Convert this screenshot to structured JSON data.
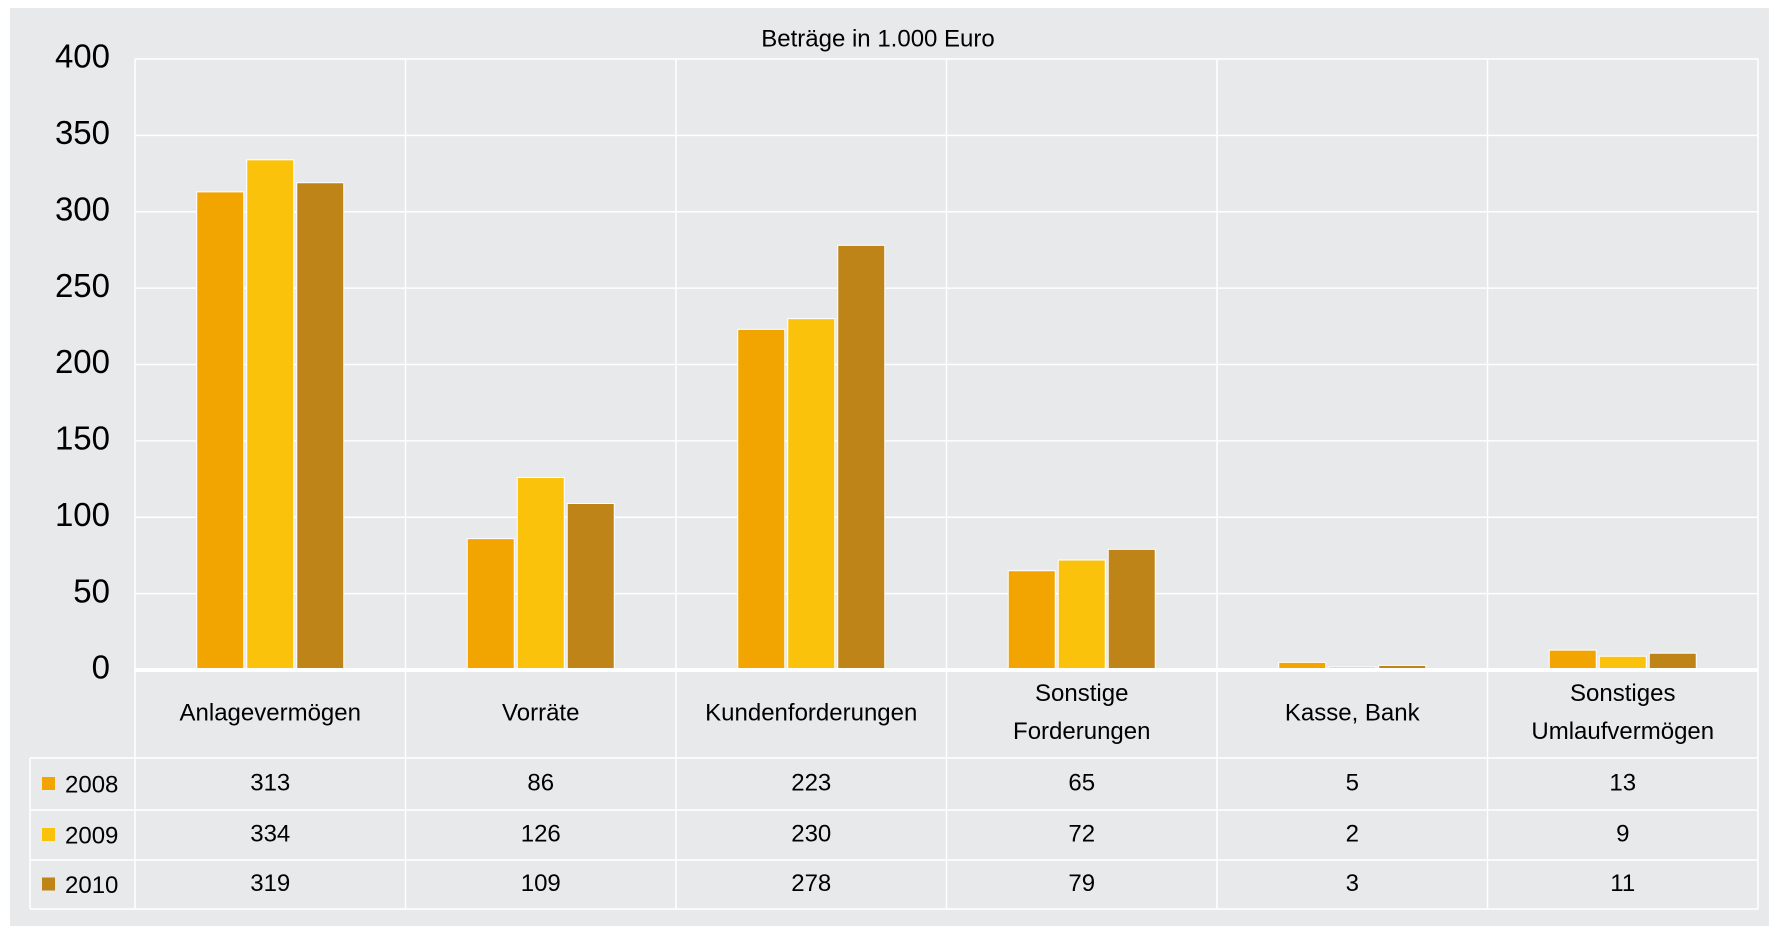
{
  "chart_data": {
    "type": "bar",
    "title": "Beträge in 1.000 Euro",
    "categories": [
      "Anlagevermögen",
      "Vorräte",
      "Kundenforderungen",
      "Sonstige Forderungen",
      "Kasse, Bank",
      "Sonstiges Umlaufvermögen"
    ],
    "series": [
      {
        "name": "2008",
        "color": "#f2a500",
        "values": [
          313,
          86,
          223,
          65,
          5,
          13
        ]
      },
      {
        "name": "2009",
        "color": "#fac20a",
        "values": [
          334,
          126,
          230,
          72,
          2,
          9
        ]
      },
      {
        "name": "2010",
        "color": "#bf8417",
        "values": [
          319,
          109,
          278,
          79,
          3,
          11
        ]
      }
    ],
    "ylim": [
      0,
      400
    ],
    "yticks": [
      0,
      50,
      100,
      150,
      200,
      250,
      300,
      350,
      400
    ],
    "grid": true
  }
}
